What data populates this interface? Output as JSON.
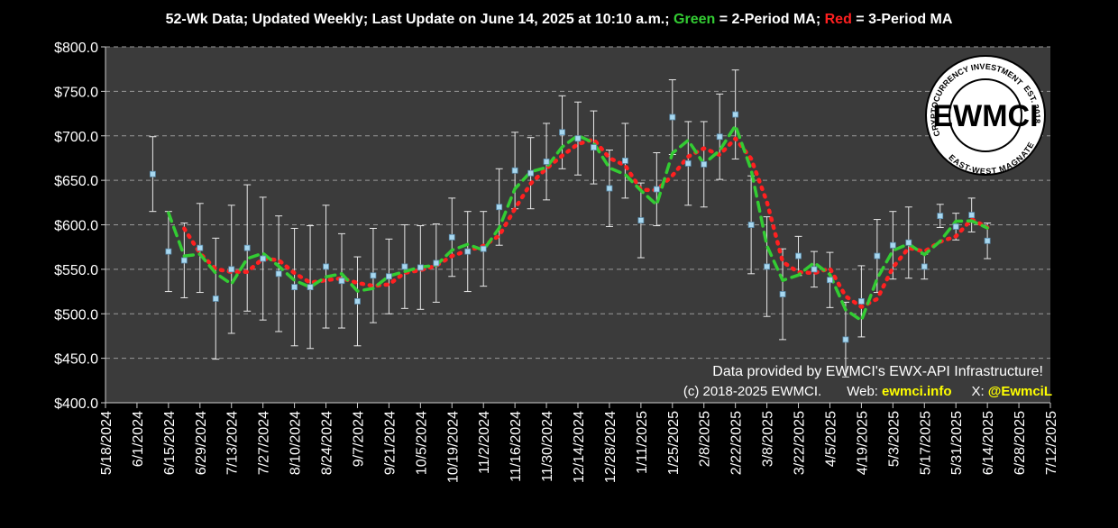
{
  "chart_data": {
    "type": "scatter",
    "title_parts": [
      {
        "text": "52-Wk Data; Updated Weekly; Last Update on June 14, 2025 at 10:10 a.m.; ",
        "color": "#ffffff"
      },
      {
        "text": "Green",
        "color": "#33cc33"
      },
      {
        "text": " = 2-Period MA; ",
        "color": "#ffffff"
      },
      {
        "text": "Red",
        "color": "#ff2020"
      },
      {
        "text": " = 3-Period MA",
        "color": "#ffffff"
      }
    ],
    "x": [
      "6/8/2024",
      "6/15/2024",
      "6/22/2024",
      "6/29/2024",
      "7/6/2024",
      "7/13/2024",
      "7/20/2024",
      "7/27/2024",
      "8/3/2024",
      "8/10/2024",
      "8/17/2024",
      "8/24/2024",
      "8/31/2024",
      "9/7/2024",
      "9/14/2024",
      "9/21/2024",
      "9/28/2024",
      "10/5/2024",
      "10/12/2024",
      "10/19/2024",
      "10/26/2024",
      "11/2/2024",
      "11/9/2024",
      "11/16/2024",
      "11/23/2024",
      "11/30/2024",
      "12/7/2024",
      "12/14/2024",
      "12/21/2024",
      "12/28/2024",
      "1/4/2025",
      "1/11/2025",
      "1/18/2025",
      "1/25/2025",
      "2/1/2025",
      "2/8/2025",
      "2/15/2025",
      "2/22/2025",
      "3/1/2025",
      "3/8/2025",
      "3/15/2025",
      "3/22/2025",
      "3/29/2025",
      "4/5/2025",
      "4/12/2025",
      "4/19/2025",
      "4/26/2025",
      "5/3/2025",
      "5/10/2025",
      "5/17/2025",
      "5/24/2025",
      "5/31/2025",
      "6/7/2025",
      "6/14/2025"
    ],
    "values": [
      657,
      570,
      560,
      574,
      517,
      550,
      574,
      562,
      545,
      530,
      530,
      553,
      537,
      514,
      543,
      542,
      553,
      552,
      557,
      586,
      570,
      573,
      620,
      661,
      658,
      671,
      704,
      697,
      687,
      641,
      672,
      605,
      640,
      721,
      669,
      668,
      699,
      724,
      600,
      553,
      522,
      565,
      550,
      538,
      471,
      514,
      565,
      577,
      580,
      553,
      610,
      598,
      611,
      582
    ],
    "errors": [
      42,
      45,
      42,
      50,
      68,
      72,
      71,
      69,
      65,
      66,
      69,
      69,
      53,
      50,
      53,
      42,
      47,
      47,
      44,
      44,
      45,
      42,
      43,
      43,
      40,
      43,
      41,
      41,
      41,
      43,
      42,
      42,
      41,
      42,
      47,
      48,
      48,
      50,
      55,
      56,
      51,
      22,
      20,
      31,
      42,
      40,
      41,
      38,
      40,
      14,
      13,
      15,
      19,
      20
    ],
    "color": "#a8d8f0",
    "error_color": "#e8e8e8",
    "ma2": {
      "color": "#33cc33",
      "values": [
        null,
        613.5,
        565,
        567,
        545.5,
        533.5,
        562,
        568,
        553.5,
        537.5,
        530,
        541.5,
        545,
        525.5,
        528.5,
        542.5,
        547.5,
        552.5,
        554.5,
        571.5,
        578,
        571.5,
        596.5,
        640.5,
        659.5,
        664.5,
        687.5,
        700.5,
        692,
        664,
        656.5,
        638.5,
        622.5,
        680.5,
        695,
        668.5,
        683.5,
        711.5,
        662,
        576.5,
        537.5,
        543.5,
        557.5,
        544,
        504.5,
        492.5,
        539.5,
        571,
        578.5,
        566.5,
        581.5,
        604,
        604.5,
        596.5
      ]
    },
    "ma3": {
      "color": "#ff2020",
      "values": [
        null,
        null,
        595.7,
        568,
        550.3,
        547,
        547,
        562,
        560.3,
        545.7,
        535,
        537.7,
        540,
        534.7,
        531.3,
        533,
        546,
        549,
        554,
        565,
        571,
        576.3,
        587.7,
        618,
        646.3,
        663.3,
        677.7,
        690.7,
        696,
        675,
        666.7,
        639.3,
        639,
        655.3,
        676.7,
        686,
        678.7,
        697,
        674.3,
        625.7,
        558.3,
        546.7,
        545.7,
        551,
        519.7,
        507.7,
        516.7,
        552,
        574,
        570,
        581,
        587,
        606.3,
        597
      ]
    },
    "xlim": [
      "5/18/2024",
      "7/12/2025"
    ],
    "xticks": [
      "5/18/2024",
      "6/1/2024",
      "6/15/2024",
      "6/29/2024",
      "7/13/2024",
      "7/27/2024",
      "8/10/2024",
      "8/24/2024",
      "9/7/2024",
      "9/21/2024",
      "10/5/2024",
      "10/19/2024",
      "11/2/2024",
      "11/16/2024",
      "11/30/2024",
      "12/14/2024",
      "12/28/2024",
      "1/11/2025",
      "1/25/2025",
      "2/8/2025",
      "2/22/2025",
      "3/8/2025",
      "3/22/2025",
      "4/5/2025",
      "4/19/2025",
      "5/3/2025",
      "5/17/2025",
      "5/31/2025",
      "6/14/2025",
      "6/28/2025",
      "7/12/2025"
    ],
    "ylim": [
      400,
      800
    ],
    "yticks": [
      {
        "value": 400,
        "label": "$400.0"
      },
      {
        "value": 450,
        "label": "$450.0"
      },
      {
        "value": 500,
        "label": "$500.0"
      },
      {
        "value": 550,
        "label": "$550.0"
      },
      {
        "value": 600,
        "label": "$600.0"
      },
      {
        "value": 650,
        "label": "$650.0"
      },
      {
        "value": 700,
        "label": "$700.0"
      },
      {
        "value": 750,
        "label": "$750.0"
      },
      {
        "value": 800,
        "label": "$800.0"
      }
    ],
    "grid": true,
    "annotation_line1": "Data provided by EWMCI's EWX-API Infrastructure!",
    "annotation_line2": [
      {
        "text": "(c) 2018-2025 EWMCI.",
        "color": "#ffffff"
      },
      {
        "text": "Web:",
        "color": "#ffffff"
      },
      {
        "text": "ewmci.info",
        "color": "#ffff00"
      },
      {
        "text": "X:",
        "color": "#ffffff"
      },
      {
        "text": "@EwmciL",
        "color": "#ffff00"
      }
    ],
    "logo": {
      "center": "EWMCI",
      "top": "CRYPTOCURRENCY INVESTMENTS",
      "right": "EST. 2018",
      "bottom": "EAST-WEST MAGNATE"
    }
  }
}
